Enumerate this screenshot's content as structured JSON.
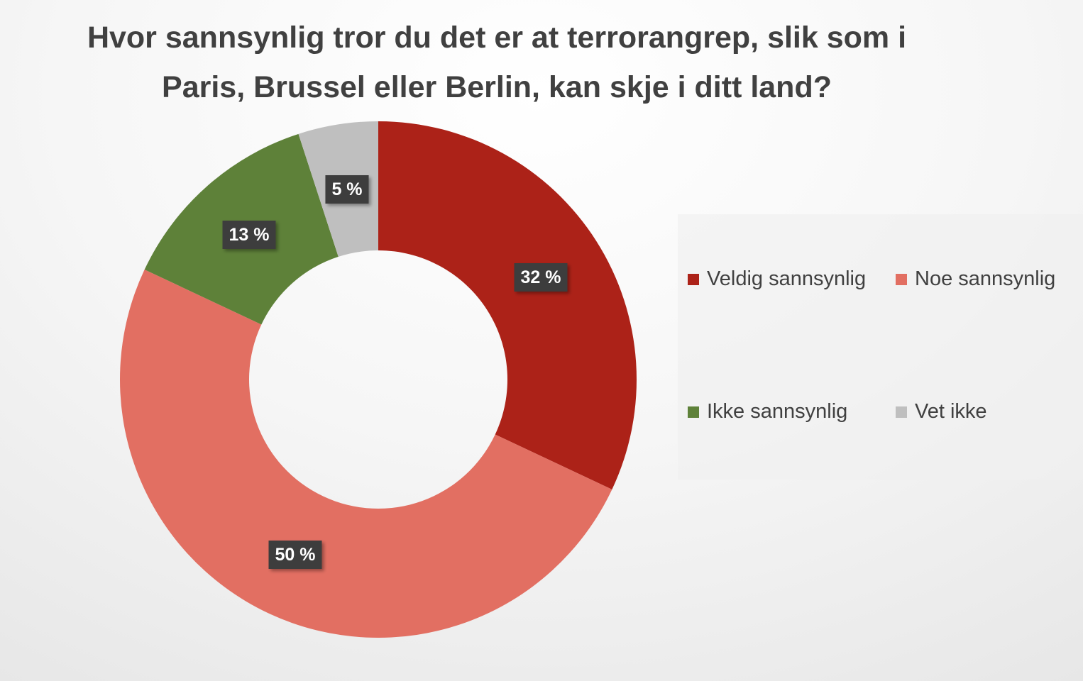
{
  "chart_data": {
    "type": "pie",
    "variant": "donut",
    "title": "Hvor sannsynlig tror du det er at terrorangrep, slik som i Paris, Brussel eller Berlin, kan skje i ditt land?",
    "title_lines": [
      "Hvor sannsynlig tror du det er at terrorangrep, slik som i",
      "Paris, Brussel eller Berlin, kan skje i ditt land?"
    ],
    "categories": [
      "Veldig sannsynlig",
      "Noe sannsynlig",
      "Ikke sannsynlig",
      "Vet ikke"
    ],
    "values": [
      32,
      50,
      13,
      5
    ],
    "data_labels": [
      "32 %",
      "50 %",
      "13 %",
      "5 %"
    ],
    "colors": [
      "#ac2218",
      "#e26f62",
      "#5e8139",
      "#bfbfbf"
    ],
    "label_box_color": "#3d3d3d",
    "legend_position": "right",
    "start_angle": "top, clockwise"
  },
  "legend": {
    "items": [
      {
        "label": "Veldig sannsynlig",
        "color": "#ac2218"
      },
      {
        "label": "Noe sannsynlig",
        "color": "#e26f62"
      },
      {
        "label": "Ikke sannsynlig",
        "color": "#5e8139"
      },
      {
        "label": "Vet ikke",
        "color": "#bfbfbf"
      }
    ]
  }
}
